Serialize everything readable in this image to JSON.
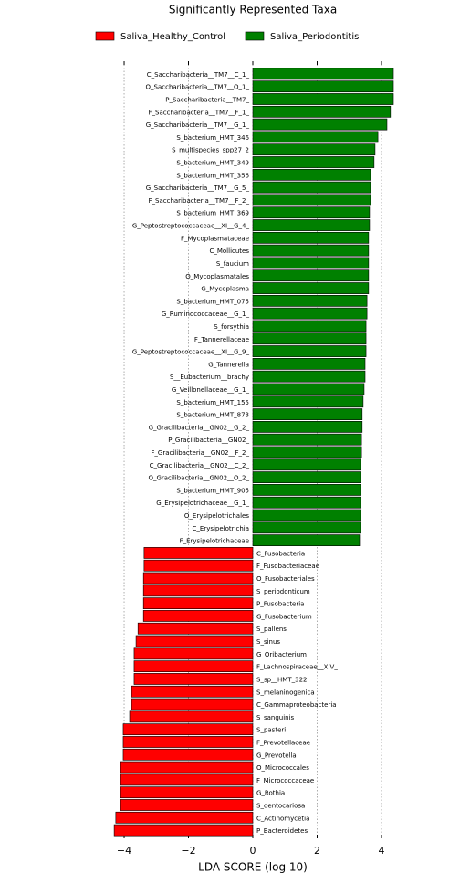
{
  "chart_data": {
    "type": "barh",
    "title": "Significantly Represented Taxa",
    "xlabel": "LDA SCORE (log 10)",
    "categories": [
      "C_Saccharibacteria__TM7__C_1_",
      "O_Saccharibacteria__TM7__O_1_",
      "P_Saccharibacteria__TM7_",
      "F_Saccharibacteria__TM7__F_1_",
      "G_Saccharibacteria__TM7__G_1_",
      "S_bacterium_HMT_346",
      "S_multispecies_spp27_2",
      "S_bacterium_HMT_349",
      "S_bacterium_HMT_356",
      "G_Saccharibacteria__TM7__G_5_",
      "F_Saccharibacteria__TM7__F_2_",
      "S_bacterium_HMT_369",
      "G_Peptostreptococcaceae__XI__G_4_",
      "F_Mycoplasmataceae",
      "C_Mollicutes",
      "S_faucium",
      "O_Mycoplasmatales",
      "G_Mycoplasma",
      "S_bacterium_HMT_075",
      "G_Ruminococcaceae__G_1_",
      "S_forsythia",
      "F_Tannerellaceae",
      "G_Peptostreptococcaceae__XI__G_9_",
      "G_Tannerella",
      "S__Eubacterium__brachy",
      "G_Veillonellaceae__G_1_",
      "S_bacterium_HMT_155",
      "S_bacterium_HMT_873",
      "G_Gracilibacteria__GN02__G_2_",
      "P_Gracilibacteria__GN02_",
      "F_Gracilibacteria__GN02__F_2_",
      "C_Gracilibacteria__GN02__C_2_",
      "O_Gracilibacteria__GN02__O_2_",
      "S_bacterium_HMT_905",
      "G_Erysipelotrichaceae__G_1_",
      "O_Erysipelotrichales",
      "C_Erysipelotrichia",
      "F_Erysipelotrichaceae",
      "C_Fusobacteria",
      "F_Fusobacteriaceae",
      "O_Fusobacteriales",
      "S_periodonticum",
      "P_Fusobacteria",
      "G_Fusobacterium",
      "S_pallens",
      "S_sinus",
      "G_Oribacterium",
      "F_Lachnospiraceae__XIV_",
      "S_sp__HMT_322",
      "S_melaninogenica",
      "C_Gammaproteobacteria",
      "S_sanguinis",
      "S_pasteri",
      "F_Prevotellaceae",
      "G_Prevotella",
      "O_Micrococcales",
      "F_Micrococcaceae",
      "G_Rothia",
      "S_dentocariosa",
      "C_Actinomycetia",
      "P_Bacteroidetes"
    ],
    "series": [
      {
        "name": "Saliva_Healthy_Control",
        "color": "#ff0000",
        "values": [
          null,
          null,
          null,
          null,
          null,
          null,
          null,
          null,
          null,
          null,
          null,
          null,
          null,
          null,
          null,
          null,
          null,
          null,
          null,
          null,
          null,
          null,
          null,
          null,
          null,
          null,
          null,
          null,
          null,
          null,
          null,
          null,
          null,
          null,
          null,
          null,
          null,
          null,
          -3.38,
          -3.38,
          -3.4,
          -3.4,
          -3.4,
          -3.4,
          -3.57,
          -3.63,
          -3.69,
          -3.69,
          -3.69,
          -3.77,
          -3.77,
          -3.83,
          -4.03,
          -4.03,
          -4.03,
          -4.11,
          -4.11,
          -4.11,
          -4.11,
          -4.26,
          -4.31
        ]
      },
      {
        "name": "Saliva_Periodontitis",
        "color": "#008000",
        "values": [
          4.37,
          4.37,
          4.37,
          4.28,
          4.17,
          3.89,
          3.8,
          3.77,
          3.66,
          3.66,
          3.66,
          3.63,
          3.63,
          3.6,
          3.6,
          3.6,
          3.6,
          3.6,
          3.55,
          3.55,
          3.52,
          3.52,
          3.52,
          3.49,
          3.49,
          3.46,
          3.43,
          3.4,
          3.4,
          3.38,
          3.38,
          3.35,
          3.35,
          3.35,
          3.35,
          3.35,
          3.35,
          3.32,
          null,
          null,
          null,
          null,
          null,
          null,
          null,
          null,
          null,
          null,
          null,
          null,
          null,
          null,
          null,
          null,
          null,
          null,
          null,
          null,
          null,
          null,
          null
        ]
      }
    ],
    "xlim": [
      -4.5,
      4.5
    ],
    "xticks": [
      {
        "value": -4,
        "label": "−4"
      },
      {
        "value": -2,
        "label": "−2"
      },
      0,
      2,
      4
    ],
    "grid": true
  }
}
